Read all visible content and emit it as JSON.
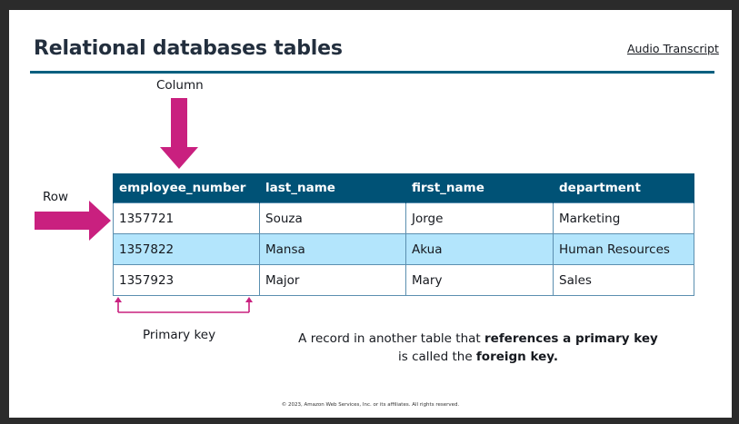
{
  "header": {
    "title": "Relational databases tables",
    "audio_link": "Audio Transcript"
  },
  "annotations": {
    "column_label": "Column",
    "row_label": "Row",
    "primary_key_label": "Primary key",
    "arrow_color": "#c9207f"
  },
  "table": {
    "header_color": "#005276",
    "highlight_color": "#b3e5fc",
    "columns": [
      "employee_number",
      "last_name",
      "first_name",
      "department"
    ],
    "rows": [
      [
        "1357721",
        "Souza",
        "Jorge",
        "Marketing"
      ],
      [
        "1357822",
        "Mansa",
        "Akua",
        "Human Resources"
      ],
      [
        "1357923",
        "Major",
        "Mary",
        "Sales"
      ]
    ]
  },
  "note": {
    "part1": "A record in another table that ",
    "part2_bold": "references a primary key",
    "part3": "is called the ",
    "part4_bold": "foreign key."
  },
  "footer": {
    "copyright": "© 2023, Amazon Web Services, Inc. or its affiliates. All rights reserved."
  }
}
